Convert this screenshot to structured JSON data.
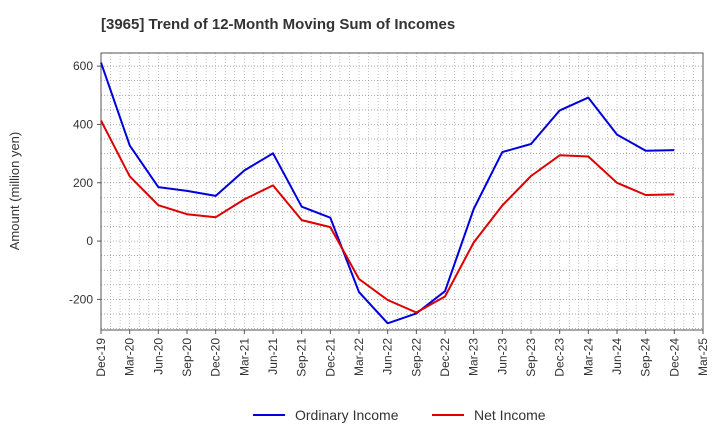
{
  "chart_data": {
    "type": "line",
    "title": "[3965]  Trend of 12-Month Moving Sum of Incomes",
    "ylabel": "Amount (million yen)",
    "xlabel": "",
    "ylim": [
      -305,
      645
    ],
    "yticks": [
      -200,
      0,
      200,
      400,
      600
    ],
    "categories": [
      "Dec-19",
      "Mar-20",
      "Jun-20",
      "Sep-20",
      "Dec-20",
      "Mar-21",
      "Jun-21",
      "Sep-21",
      "Dec-21",
      "Mar-22",
      "Jun-22",
      "Sep-22",
      "Dec-22",
      "Mar-23",
      "Jun-23",
      "Sep-23",
      "Dec-23",
      "Mar-24",
      "Jun-24",
      "Sep-24",
      "Dec-24",
      "Mar-25"
    ],
    "grid": true,
    "legend_position": "bottom",
    "series": [
      {
        "name": "Ordinary Income",
        "color": "#0000dd",
        "values": [
          612,
          328,
          185,
          172,
          155,
          242,
          301,
          118,
          80,
          -175,
          -282,
          -248,
          -172,
          110,
          305,
          333,
          448,
          492,
          365,
          310,
          312,
          null
        ]
      },
      {
        "name": "Net Income",
        "color": "#dd0000",
        "values": [
          413,
          222,
          123,
          92,
          82,
          143,
          191,
          72,
          48,
          -130,
          -202,
          -245,
          -190,
          -5,
          122,
          223,
          294,
          290,
          200,
          158,
          160,
          null
        ]
      }
    ]
  }
}
